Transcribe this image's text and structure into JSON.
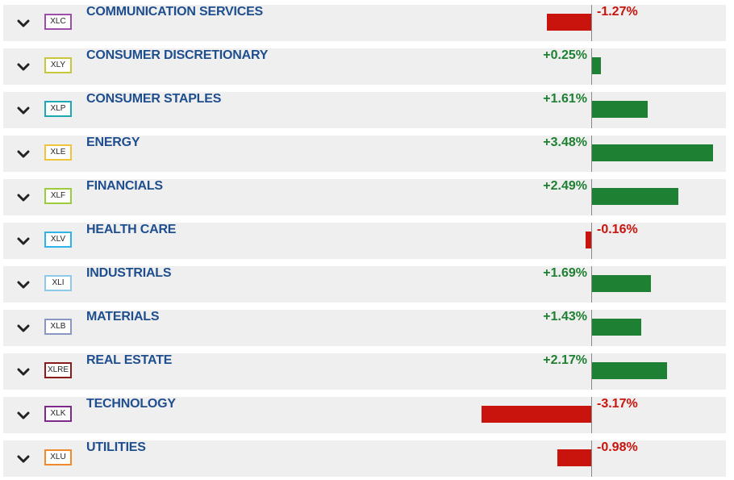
{
  "colors": {
    "positive": "#1e8032",
    "negative": "#c9140e",
    "name": "#1f4e8f"
  },
  "sectors": [
    {
      "ticker": "XLC",
      "name": "COMMUNICATION SERVICES",
      "change_text": "-1.27%",
      "change": -1.27,
      "tag_color": "#9b4fa8"
    },
    {
      "ticker": "XLY",
      "name": "CONSUMER DISCRETIONARY",
      "change_text": "+0.25%",
      "change": 0.25,
      "tag_color": "#c8c63c"
    },
    {
      "ticker": "XLP",
      "name": "CONSUMER STAPLES",
      "change_text": "+1.61%",
      "change": 1.61,
      "tag_color": "#1ca9b4"
    },
    {
      "ticker": "XLE",
      "name": "ENERGY",
      "change_text": "+3.48%",
      "change": 3.48,
      "tag_color": "#f0c43a"
    },
    {
      "ticker": "XLF",
      "name": "FINANCIALS",
      "change_text": "+2.49%",
      "change": 2.49,
      "tag_color": "#9ccc3c"
    },
    {
      "ticker": "XLV",
      "name": "HEALTH CARE",
      "change_text": "-0.16%",
      "change": -0.16,
      "tag_color": "#2fb3e8"
    },
    {
      "ticker": "XLI",
      "name": "INDUSTRIALS",
      "change_text": "+1.69%",
      "change": 1.69,
      "tag_color": "#8ec9e8"
    },
    {
      "ticker": "XLB",
      "name": "MATERIALS",
      "change_text": "+1.43%",
      "change": 1.43,
      "tag_color": "#8a96c4"
    },
    {
      "ticker": "XLRE",
      "name": "REAL ESTATE",
      "change_text": "+2.17%",
      "change": 2.17,
      "tag_color": "#8b1a1a"
    },
    {
      "ticker": "XLK",
      "name": "TECHNOLOGY",
      "change_text": "-3.17%",
      "change": -3.17,
      "tag_color": "#7d2a8a"
    },
    {
      "ticker": "XLU",
      "name": "UTILITIES",
      "change_text": "-0.98%",
      "change": -0.98,
      "tag_color": "#f08a2a"
    }
  ]
}
